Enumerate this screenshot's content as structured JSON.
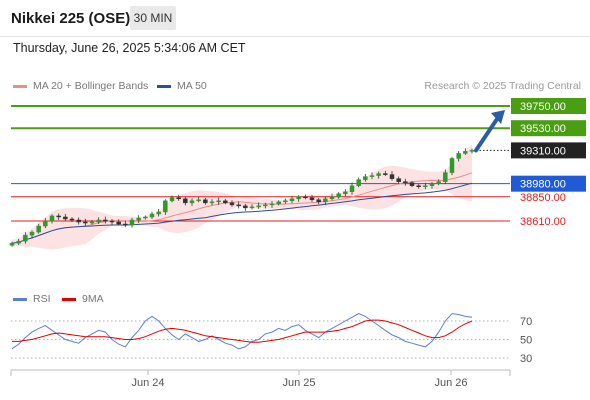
{
  "header": {
    "instrument": "Nikkei 225 (OSE)",
    "timeframe": "30 MIN"
  },
  "datetime": "Thursday, June 26, 2025 5:34:06 AM CET",
  "legend": {
    "ma20": "MA 20 + Bollinger Bands",
    "ma50": "MA 50",
    "ma20_color": "#f08a8a",
    "ma50_color": "#2c4f95"
  },
  "watermark": "Research © 2025 Trading Central",
  "rsi_legend": {
    "rsi": "RSI",
    "ma": "9MA",
    "rsi_color": "#5b7fd6",
    "ma_color": "#e00000"
  },
  "chart_data": {
    "type": "candlestick",
    "x_ticks": [
      "Jun 24",
      "Jun 25",
      "Jun 26"
    ],
    "price_levels": [
      {
        "label": "39750.00",
        "value": 39750,
        "kind": "target",
        "color": "#4a9e12"
      },
      {
        "label": "39530.00",
        "value": 39530,
        "kind": "target",
        "color": "#4a9e12"
      },
      {
        "label": "39310.00",
        "value": 39310,
        "kind": "current",
        "color": "#222222"
      },
      {
        "label": "38980.00",
        "value": 38980,
        "kind": "pivot",
        "color": "#1f5bd6"
      },
      {
        "label": "38850.00",
        "value": 38850,
        "kind": "support",
        "color": "#e02020"
      },
      {
        "label": "38610.00",
        "value": 38610,
        "kind": "support",
        "color": "#e02020"
      }
    ],
    "closes": [
      38390,
      38410,
      38470,
      38500,
      38560,
      38610,
      38660,
      38650,
      38630,
      38620,
      38600,
      38590,
      38600,
      38620,
      38610,
      38600,
      38580,
      38570,
      38620,
      38640,
      38650,
      38680,
      38700,
      38810,
      38840,
      38830,
      38790,
      38810,
      38820,
      38790,
      38800,
      38810,
      38790,
      38770,
      38760,
      38740,
      38750,
      38760,
      38770,
      38780,
      38800,
      38810,
      38830,
      38850,
      38840,
      38820,
      38800,
      38830,
      38850,
      38880,
      38900,
      38960,
      39020,
      39050,
      39060,
      39080,
      39070,
      39030,
      39000,
      38990,
      38960,
      38950,
      38960,
      38980,
      39000,
      39090,
      39230,
      39280,
      39300,
      39310
    ],
    "rsi_axis": [
      70,
      50,
      30
    ],
    "rsi": [
      40,
      45,
      52,
      58,
      62,
      65,
      60,
      55,
      50,
      48,
      46,
      52,
      56,
      60,
      58,
      50,
      45,
      42,
      52,
      60,
      70,
      75,
      70,
      62,
      55,
      50,
      56,
      52,
      48,
      50,
      54,
      50,
      46,
      44,
      40,
      42,
      48,
      50,
      56,
      58,
      62,
      60,
      64,
      66,
      60,
      56,
      52,
      58,
      62,
      66,
      70,
      74,
      78,
      75,
      70,
      65,
      60,
      55,
      52,
      48,
      46,
      44,
      42,
      48,
      58,
      70,
      78,
      77,
      75,
      74
    ],
    "rsi_ma": [
      48,
      48,
      49,
      50,
      52,
      54,
      56,
      57,
      56,
      55,
      54,
      53,
      53,
      53,
      53,
      52,
      51,
      50,
      50,
      51,
      53,
      56,
      59,
      61,
      62,
      61,
      60,
      58,
      56,
      54,
      53,
      52,
      51,
      50,
      49,
      48,
      47,
      47,
      48,
      49,
      50,
      52,
      54,
      56,
      58,
      58,
      58,
      58,
      59,
      60,
      62,
      64,
      67,
      70,
      71,
      71,
      70,
      68,
      66,
      63,
      60,
      57,
      54,
      52,
      52,
      54,
      58,
      63,
      67,
      70
    ]
  }
}
